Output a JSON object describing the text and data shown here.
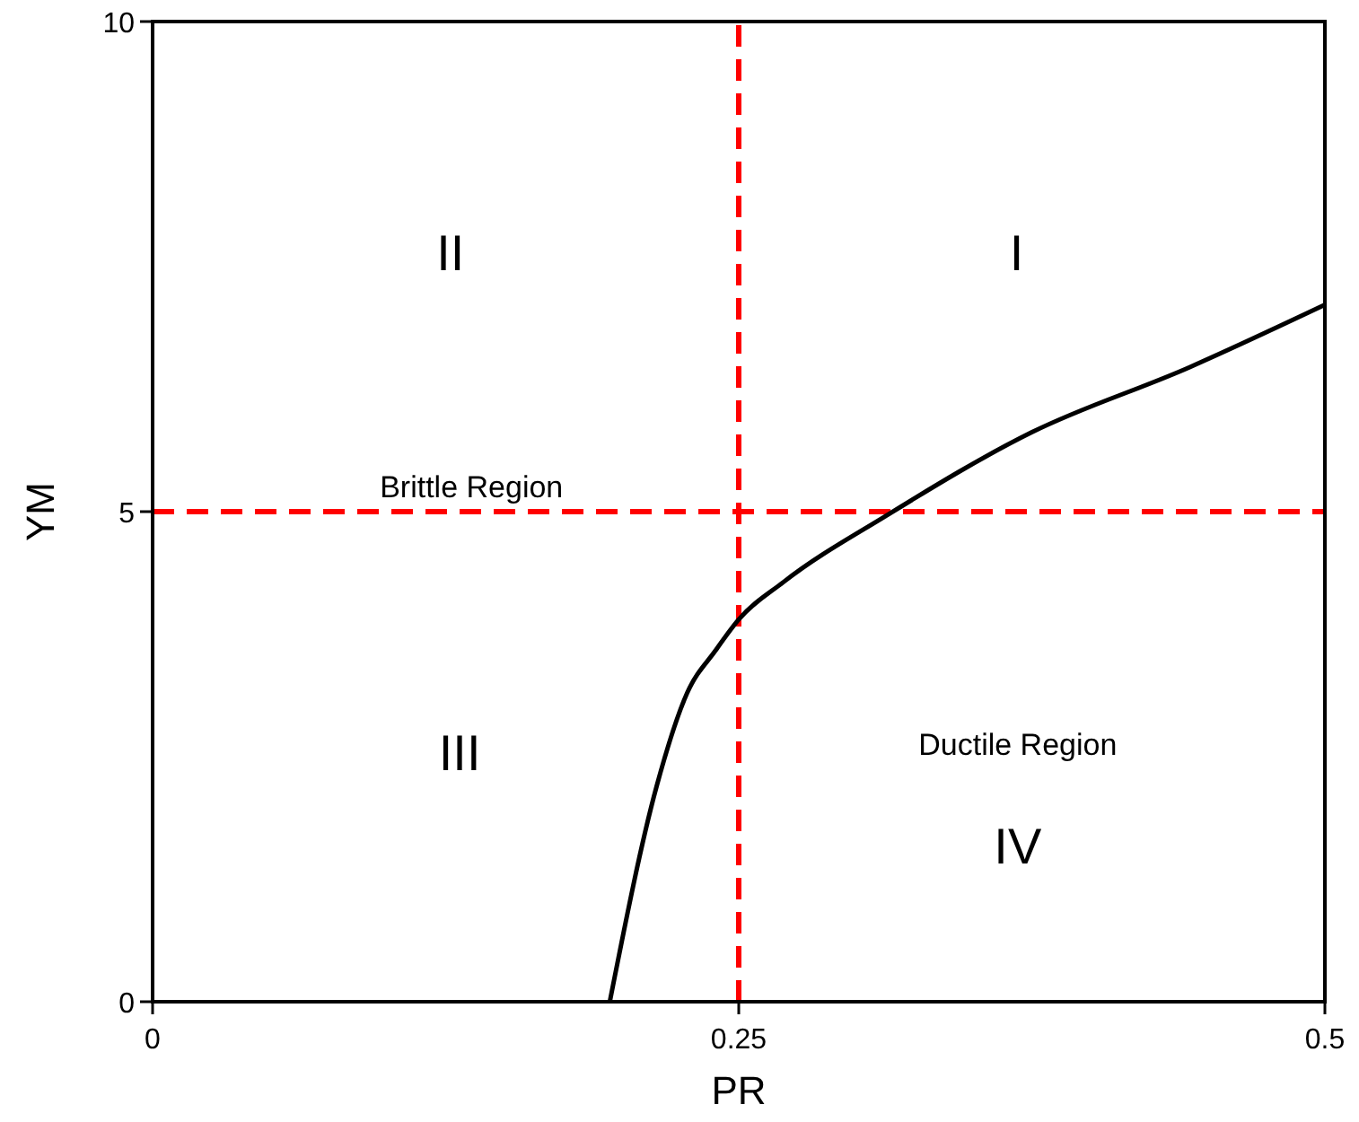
{
  "chart_data": {
    "type": "line",
    "xlabel": "PR",
    "ylabel": "YM",
    "xlim": [
      0,
      0.5
    ],
    "xticks": [
      0,
      0.25,
      0.5
    ],
    "ylim": [
      0,
      10
    ],
    "yticks": [
      0,
      5,
      10
    ],
    "grid": false,
    "marker": "none",
    "line_style": "solid",
    "series": [
      {
        "color": "#000000",
        "x": [
          0.195,
          0.215,
          0.228,
          0.24,
          0.25,
          0.269,
          0.313,
          0.375,
          0.442,
          0.5
        ],
        "values": [
          0,
          2.2,
          3.15,
          3.58,
          3.9,
          4.28,
          4.96,
          5.81,
          6.47,
          7.11
        ]
      }
    ],
    "ref_lines": [
      {
        "axis": "x",
        "value": 0.25,
        "color": "#ff0000",
        "line_style": "dashed"
      },
      {
        "axis": "y",
        "value": 5,
        "color": "#ff0000",
        "line_style": "dashed"
      }
    ],
    "annotations": [
      "II",
      "I",
      "Brittle Region",
      "III",
      "Ductile Region",
      "IV"
    ]
  }
}
